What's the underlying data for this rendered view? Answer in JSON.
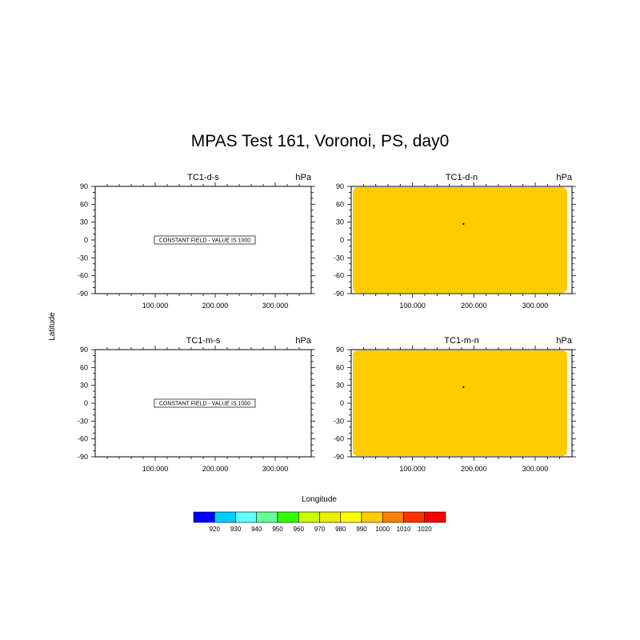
{
  "chart_data": {
    "type": "heatmap",
    "title": "MPAS Test 161,  Voronoi, PS, day0",
    "xlabel": "Longitude",
    "ylabel": "Latitude",
    "xlim": [
      0,
      360
    ],
    "ylim": [
      -90,
      90
    ],
    "x_ticks": [
      100,
      200,
      300
    ],
    "x_tick_labels": [
      "100.000",
      "200.000",
      "300.000"
    ],
    "y_ticks": [
      90,
      60,
      30,
      0,
      -30,
      -60,
      -90
    ],
    "y_tick_labels": [
      "90",
      "60",
      "30",
      "0",
      "-30",
      "-60",
      "-90"
    ],
    "panels": [
      {
        "name": "TC1-d-s",
        "units": "hPa",
        "constant": true,
        "annotation": "CONSTANT FIELD - VALUE IS 1000"
      },
      {
        "name": "TC1-d-n",
        "units": "hPa",
        "constant": false,
        "fill_level": "1000",
        "fill_color": "#ffcc00",
        "dot": [
          183,
          27
        ]
      },
      {
        "name": "TC1-m-s",
        "units": "hPa",
        "constant": true,
        "annotation": "CONSTANT FIELD - VALUE IS 1000"
      },
      {
        "name": "TC1-m-n",
        "units": "hPa",
        "constant": false,
        "fill_level": "1000",
        "fill_color": "#ffcc00",
        "dot": [
          183,
          27
        ]
      }
    ],
    "colorbar": {
      "labels": [
        "920",
        "930",
        "940",
        "950",
        "960",
        "970",
        "980",
        "990",
        "1000",
        "1010",
        "1020"
      ],
      "colors": [
        "#0000ff",
        "#00ccff",
        "#66ffff",
        "#66ff99",
        "#33ff00",
        "#ccff00",
        "#eeee00",
        "#ffff00",
        "#ffcc00",
        "#ff7f00",
        "#ff3300",
        "#ff0000"
      ]
    }
  }
}
